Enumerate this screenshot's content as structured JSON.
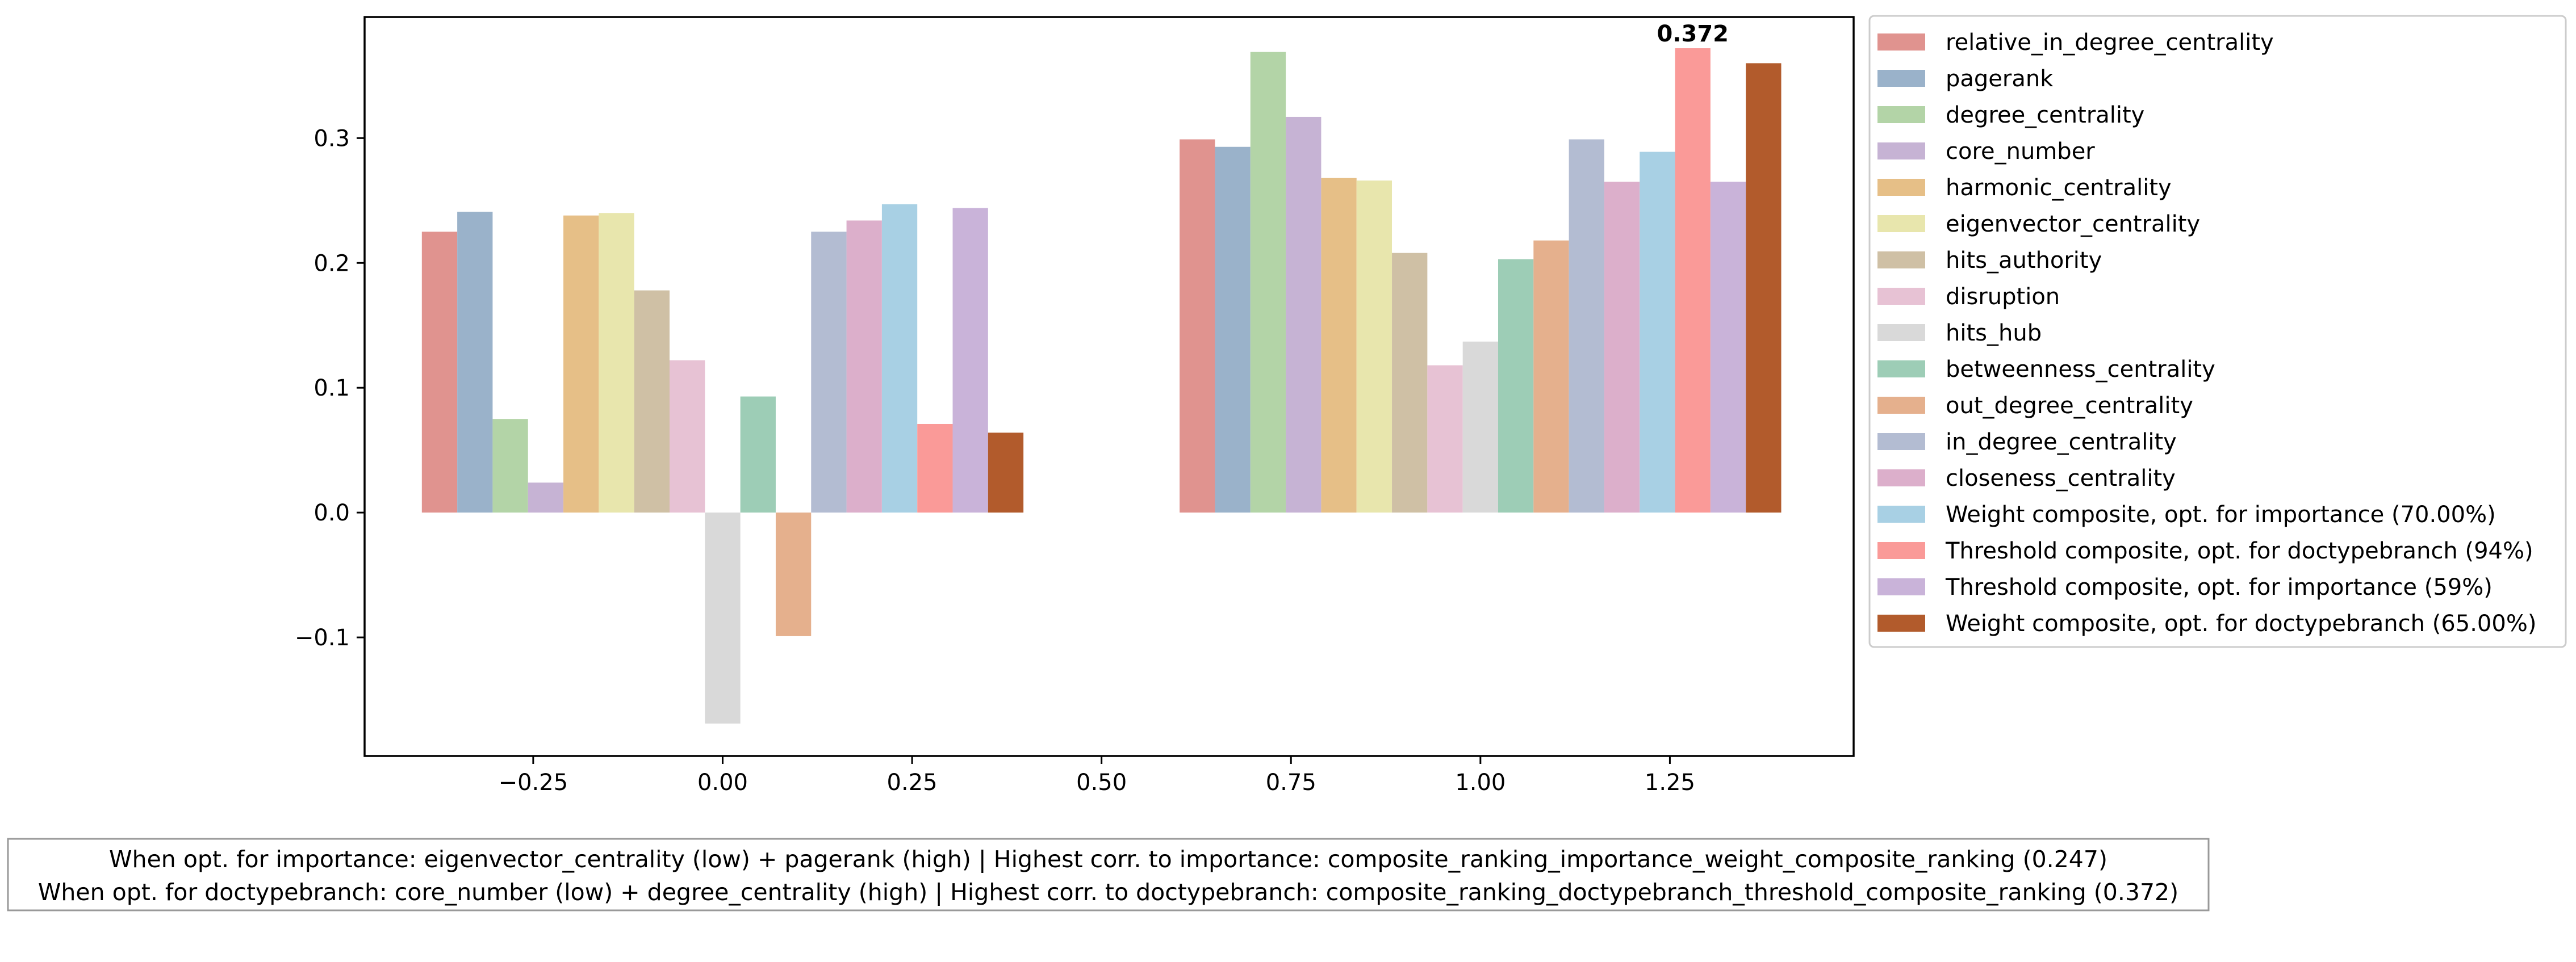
{
  "chart_data": {
    "type": "bar",
    "title": "",
    "xlabel": "",
    "ylabel": "",
    "xlim": [
      -0.4725,
      1.4925
    ],
    "ylim": [
      -0.195,
      0.397
    ],
    "x_ticks": [
      {
        "value": -0.25,
        "label": "−0.25"
      },
      {
        "value": 0.0,
        "label": "0.00"
      },
      {
        "value": 0.25,
        "label": "0.25"
      },
      {
        "value": 0.5,
        "label": "0.50"
      },
      {
        "value": 0.75,
        "label": "0.75"
      },
      {
        "value": 1.0,
        "label": "1.00"
      },
      {
        "value": 1.25,
        "label": "1.25"
      }
    ],
    "y_ticks": [
      {
        "value": -0.1,
        "label": "−0.1"
      },
      {
        "value": 0.0,
        "label": "0.0"
      },
      {
        "value": 0.1,
        "label": "0.1"
      },
      {
        "value": 0.2,
        "label": "0.2"
      },
      {
        "value": 0.3,
        "label": "0.3"
      }
    ],
    "grid": false,
    "legend_position": "outside-right",
    "group_centers": [
      0.0,
      1.0
    ],
    "bar_width": 0.0467,
    "series": [
      {
        "name": "relative_in_degree_centrality",
        "color": "#e0938f",
        "values": [
          0.225,
          0.299
        ]
      },
      {
        "name": "pagerank",
        "color": "#9ab2ca",
        "values": [
          0.241,
          0.293
        ]
      },
      {
        "name": "degree_centrality",
        "color": "#b3d4a7",
        "values": [
          0.075,
          0.369
        ]
      },
      {
        "name": "core_number",
        "color": "#c6b3d4",
        "values": [
          0.024,
          0.317
        ]
      },
      {
        "name": "harmonic_centrality",
        "color": "#e6bf87",
        "values": [
          0.238,
          0.268
        ]
      },
      {
        "name": "eigenvector_centrality",
        "color": "#e8e6ad",
        "values": [
          0.24,
          0.266
        ]
      },
      {
        "name": "hits_authority",
        "color": "#cfc0a5",
        "values": [
          0.178,
          0.208
        ]
      },
      {
        "name": "disruption",
        "color": "#e7c2d4",
        "values": [
          0.122,
          0.118
        ]
      },
      {
        "name": "hits_hub",
        "color": "#d9d9d9",
        "values": [
          -0.169,
          0.137
        ]
      },
      {
        "name": "betweenness_centrality",
        "color": "#9dcdb6",
        "values": [
          0.093,
          0.203
        ]
      },
      {
        "name": "out_degree_centrality",
        "color": "#e5b08d",
        "values": [
          -0.099,
          0.218
        ]
      },
      {
        "name": "in_degree_centrality",
        "color": "#b3bcd2",
        "values": [
          0.225,
          0.299
        ]
      },
      {
        "name": "closeness_centrality",
        "color": "#dcafcb",
        "values": [
          0.234,
          0.265
        ]
      },
      {
        "name": "Weight composite, opt. for importance (70.00%)",
        "color": "#a8d0e4",
        "values": [
          0.247,
          0.289
        ]
      },
      {
        "name": "Threshold composite, opt. for doctypebranch (94%)",
        "color": "#fa9a98",
        "values": [
          0.071,
          0.372
        ]
      },
      {
        "name": "Threshold composite, opt. for importance (59%)",
        "color": "#c9b3d9",
        "values": [
          0.244,
          0.265
        ]
      },
      {
        "name": "Weight composite, opt. for doctypebranch (65.00%)",
        "color": "#b25b2c",
        "values": [
          0.064,
          0.36
        ]
      }
    ],
    "annotations": [
      {
        "text": "0.372",
        "series_index": 14,
        "group_index": 1,
        "bold": true
      }
    ]
  },
  "footnote": {
    "lines": [
      "When opt. for importance: eigenvector_centrality (low) + pagerank (high) | Highest corr. to importance: composite_ranking_importance_weight_composite_ranking (0.247)",
      "When opt. for doctypebranch: core_number (low) + degree_centrality (high) | Highest corr. to doctypebranch: composite_ranking_doctypebranch_threshold_composite_ranking (0.372)"
    ]
  }
}
